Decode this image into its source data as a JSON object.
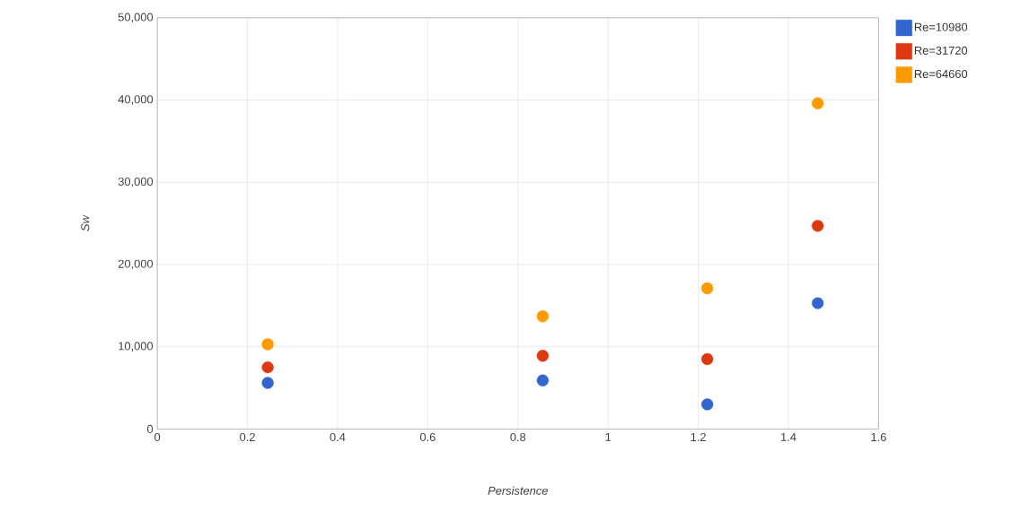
{
  "chart_data": {
    "type": "scatter",
    "xlabel": "Persistence",
    "ylabel": "Sw",
    "x": [
      0.245,
      0.855,
      1.22,
      1.465
    ],
    "series": [
      {
        "name": "Re=10980",
        "color": "#3366cc",
        "values": [
          5600,
          5900,
          3000,
          15300
        ]
      },
      {
        "name": "Re=31720",
        "color": "#dc3912",
        "values": [
          7500,
          8900,
          8500,
          24700
        ]
      },
      {
        "name": "Re=64660",
        "color": "#ff9900",
        "values": [
          10300,
          13700,
          17100,
          39600
        ]
      }
    ],
    "xlim": [
      0,
      1.6
    ],
    "xticks": [
      0,
      0.2,
      0.4,
      0.6,
      0.8,
      1,
      1.2,
      1.4,
      1.6
    ],
    "ylim": [
      0,
      50000
    ],
    "yticks": [
      0,
      {
        "value": 10000,
        "label": "10,000"
      },
      {
        "value": 20000,
        "label": "20,000"
      },
      {
        "value": 30000,
        "label": "30,000"
      },
      {
        "value": 40000,
        "label": "40,000"
      },
      {
        "value": 50000,
        "label": "50,000"
      }
    ],
    "grid": true,
    "legend": "top right",
    "marker": "circle"
  }
}
